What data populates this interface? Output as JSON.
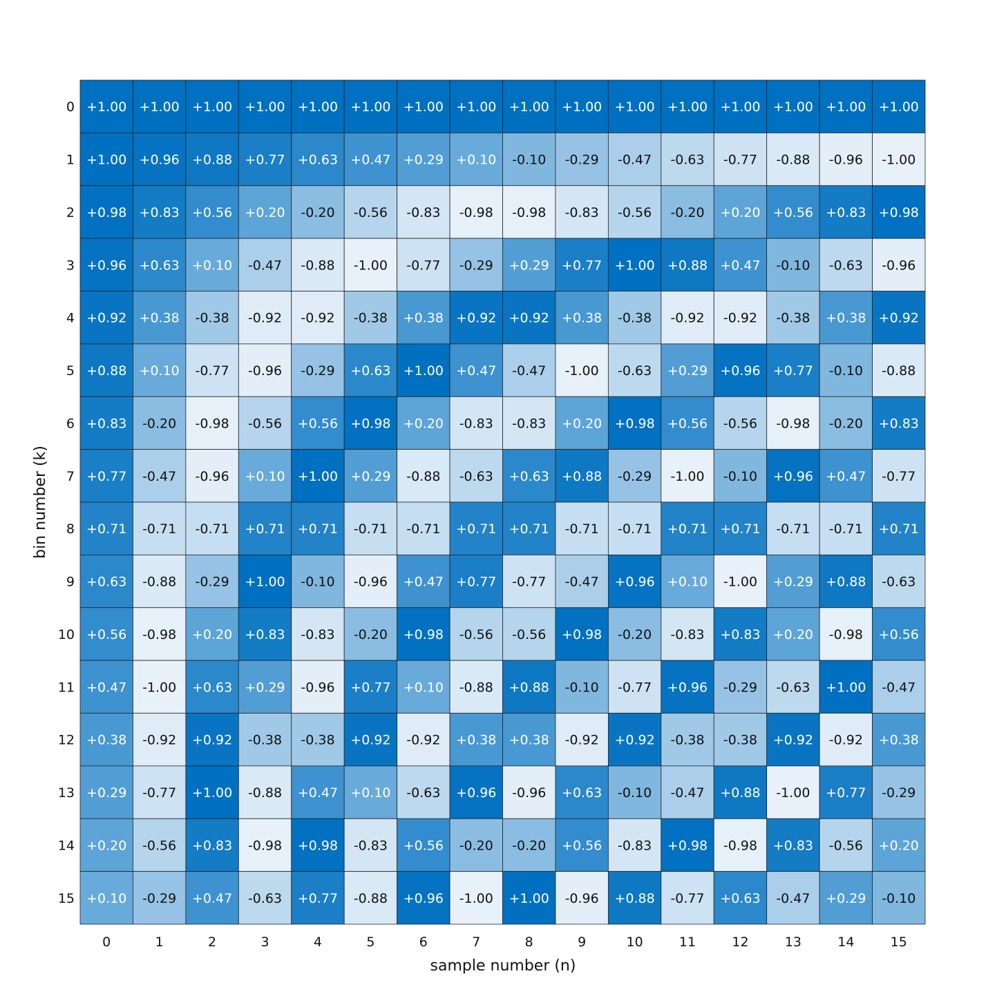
{
  "chart_data": {
    "type": "heatmap",
    "title": "",
    "xlabel": "sample number (n)",
    "ylabel": "bin number (k)",
    "x_categories": [
      "0",
      "1",
      "2",
      "3",
      "4",
      "5",
      "6",
      "7",
      "8",
      "9",
      "10",
      "11",
      "12",
      "13",
      "14",
      "15"
    ],
    "y_categories": [
      "0",
      "1",
      "2",
      "3",
      "4",
      "5",
      "6",
      "7",
      "8",
      "9",
      "10",
      "11",
      "12",
      "13",
      "14",
      "15"
    ],
    "value_range": [
      -1,
      1
    ],
    "colormap": {
      "low": "#e8f1f9",
      "high": "#0070c0"
    },
    "text_colors": {
      "dark_cells": "#ffffff",
      "light_cells": "#111111"
    },
    "grid_line_color": "#222222",
    "values": [
      [
        "+1.00",
        "+1.00",
        "+1.00",
        "+1.00",
        "+1.00",
        "+1.00",
        "+1.00",
        "+1.00",
        "+1.00",
        "+1.00",
        "+1.00",
        "+1.00",
        "+1.00",
        "+1.00",
        "+1.00",
        "+1.00"
      ],
      [
        "+1.00",
        "+0.96",
        "+0.88",
        "+0.77",
        "+0.63",
        "+0.47",
        "+0.29",
        "+0.10",
        "-0.10",
        "-0.29",
        "-0.47",
        "-0.63",
        "-0.77",
        "-0.88",
        "-0.96",
        "-1.00"
      ],
      [
        "+0.98",
        "+0.83",
        "+0.56",
        "+0.20",
        "-0.20",
        "-0.56",
        "-0.83",
        "-0.98",
        "-0.98",
        "-0.83",
        "-0.56",
        "-0.20",
        "+0.20",
        "+0.56",
        "+0.83",
        "+0.98"
      ],
      [
        "+0.96",
        "+0.63",
        "+0.10",
        "-0.47",
        "-0.88",
        "-1.00",
        "-0.77",
        "-0.29",
        "+0.29",
        "+0.77",
        "+1.00",
        "+0.88",
        "+0.47",
        "-0.10",
        "-0.63",
        "-0.96"
      ],
      [
        "+0.92",
        "+0.38",
        "-0.38",
        "-0.92",
        "-0.92",
        "-0.38",
        "+0.38",
        "+0.92",
        "+0.92",
        "+0.38",
        "-0.38",
        "-0.92",
        "-0.92",
        "-0.38",
        "+0.38",
        "+0.92"
      ],
      [
        "+0.88",
        "+0.10",
        "-0.77",
        "-0.96",
        "-0.29",
        "+0.63",
        "+1.00",
        "+0.47",
        "-0.47",
        "-1.00",
        "-0.63",
        "+0.29",
        "+0.96",
        "+0.77",
        "-0.10",
        "-0.88"
      ],
      [
        "+0.83",
        "-0.20",
        "-0.98",
        "-0.56",
        "+0.56",
        "+0.98",
        "+0.20",
        "-0.83",
        "-0.83",
        "+0.20",
        "+0.98",
        "+0.56",
        "-0.56",
        "-0.98",
        "-0.20",
        "+0.83"
      ],
      [
        "+0.77",
        "-0.47",
        "-0.96",
        "+0.10",
        "+1.00",
        "+0.29",
        "-0.88",
        "-0.63",
        "+0.63",
        "+0.88",
        "-0.29",
        "-1.00",
        "-0.10",
        "+0.96",
        "+0.47",
        "-0.77"
      ],
      [
        "+0.71",
        "-0.71",
        "-0.71",
        "+0.71",
        "+0.71",
        "-0.71",
        "-0.71",
        "+0.71",
        "+0.71",
        "-0.71",
        "-0.71",
        "+0.71",
        "+0.71",
        "-0.71",
        "-0.71",
        "+0.71"
      ],
      [
        "+0.63",
        "-0.88",
        "-0.29",
        "+1.00",
        "-0.10",
        "-0.96",
        "+0.47",
        "+0.77",
        "-0.77",
        "-0.47",
        "+0.96",
        "+0.10",
        "-1.00",
        "+0.29",
        "+0.88",
        "-0.63"
      ],
      [
        "+0.56",
        "-0.98",
        "+0.20",
        "+0.83",
        "-0.83",
        "-0.20",
        "+0.98",
        "-0.56",
        "-0.56",
        "+0.98",
        "-0.20",
        "-0.83",
        "+0.83",
        "+0.20",
        "-0.98",
        "+0.56"
      ],
      [
        "+0.47",
        "-1.00",
        "+0.63",
        "+0.29",
        "-0.96",
        "+0.77",
        "+0.10",
        "-0.88",
        "+0.88",
        "-0.10",
        "-0.77",
        "+0.96",
        "-0.29",
        "-0.63",
        "+1.00",
        "-0.47"
      ],
      [
        "+0.38",
        "-0.92",
        "+0.92",
        "-0.38",
        "-0.38",
        "+0.92",
        "-0.92",
        "+0.38",
        "+0.38",
        "-0.92",
        "+0.92",
        "-0.38",
        "-0.38",
        "+0.92",
        "-0.92",
        "+0.38"
      ],
      [
        "+0.29",
        "-0.77",
        "+1.00",
        "-0.88",
        "+0.47",
        "+0.10",
        "-0.63",
        "+0.96",
        "-0.96",
        "+0.63",
        "-0.10",
        "-0.47",
        "+0.88",
        "-1.00",
        "+0.77",
        "-0.29"
      ],
      [
        "+0.20",
        "-0.56",
        "+0.83",
        "-0.98",
        "+0.98",
        "-0.83",
        "+0.56",
        "-0.20",
        "-0.20",
        "+0.56",
        "-0.83",
        "+0.98",
        "-0.98",
        "+0.83",
        "-0.56",
        "+0.20"
      ],
      [
        "+0.10",
        "-0.29",
        "+0.47",
        "-0.63",
        "+0.77",
        "-0.88",
        "+0.96",
        "-1.00",
        "+1.00",
        "-0.96",
        "+0.88",
        "-0.77",
        "+0.63",
        "-0.47",
        "+0.29",
        "-0.10"
      ]
    ]
  }
}
